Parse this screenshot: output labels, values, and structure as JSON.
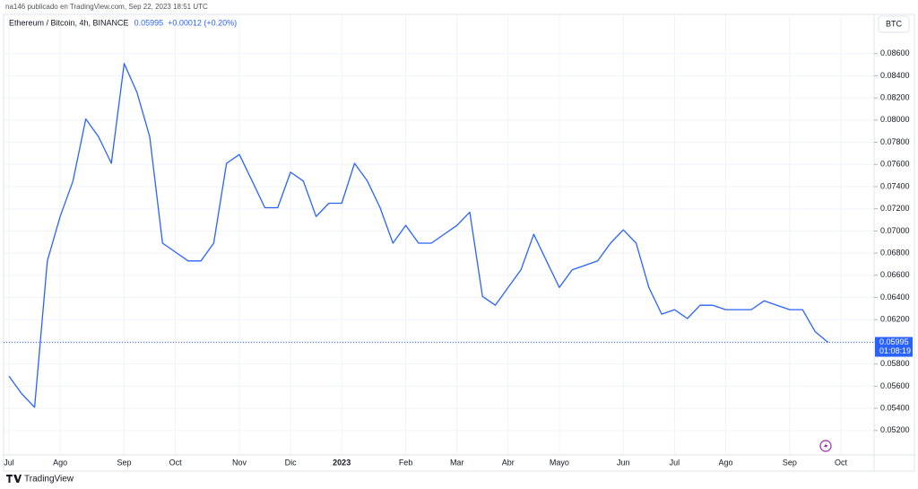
{
  "chart_data": {
    "type": "line",
    "publisher_note": "na146 publicado en TradingView.com, Sep 22, 2023 18:51 UTC",
    "title": "Ethereum / Bitcoin, 4h, BINANCE",
    "last_price": 0.05995,
    "change_text": "+0.00012 (+0.20%)",
    "currency_button": "BTC",
    "countdown": "01:08:19",
    "brand": "TradingView",
    "categories": [
      "Jul",
      null,
      null,
      null,
      "Ago",
      null,
      null,
      null,
      null,
      "Sep",
      null,
      null,
      null,
      "Oct",
      null,
      null,
      null,
      null,
      "Nov",
      null,
      null,
      null,
      "Dic",
      null,
      null,
      null,
      "2023",
      null,
      null,
      null,
      null,
      "Feb",
      null,
      null,
      null,
      "Mar",
      null,
      null,
      null,
      "Abr",
      null,
      null,
      null,
      "Mayo",
      null,
      null,
      null,
      null,
      "Jun",
      null,
      null,
      null,
      "Jul",
      null,
      null,
      null,
      "Ago",
      null,
      null,
      null,
      null,
      "Sep",
      null,
      null,
      null,
      "Oct"
    ],
    "series": [
      {
        "name": "Ethereum / Bitcoin",
        "color": "#2962ff",
        "values": [
          0.0569,
          0.0553,
          0.0541,
          0.0673,
          0.0713,
          0.0745,
          0.0801,
          0.0785,
          0.0761,
          0.0851,
          0.0825,
          0.0785,
          0.0689,
          0.0681,
          0.0673,
          0.0673,
          0.0689,
          0.0761,
          0.0769,
          0.0745,
          0.0721,
          0.0721,
          0.0753,
          0.0745,
          0.0713,
          0.0725,
          0.0725,
          0.0761,
          0.0745,
          0.0721,
          0.0689,
          0.0705,
          0.0689,
          0.0689,
          0.0697,
          0.0705,
          0.0717,
          0.0641,
          0.0633,
          0.0649,
          0.0665,
          0.0697,
          0.0673,
          0.0649,
          0.0665,
          0.0669,
          0.0673,
          0.0689,
          0.0701,
          0.0689,
          0.0649,
          0.0625,
          0.0629,
          0.0621,
          0.0633,
          0.0633,
          0.0629,
          0.0629,
          0.0629,
          0.0637,
          0.0633,
          0.0629,
          0.0629,
          0.0609,
          0.05995,
          null
        ]
      }
    ],
    "ylim": [
      0.0498,
      0.0897
    ],
    "yticks": [
      {
        "value": 0.052,
        "label": "0.05200"
      },
      {
        "value": 0.054,
        "label": "0.05400"
      },
      {
        "value": 0.056,
        "label": "0.05600"
      },
      {
        "value": 0.058,
        "label": "0.05800"
      },
      {
        "value": 0.06,
        "label": "0.06000"
      },
      {
        "value": 0.062,
        "label": "0.06200"
      },
      {
        "value": 0.064,
        "label": "0.06400"
      },
      {
        "value": 0.066,
        "label": "0.06600"
      },
      {
        "value": 0.068,
        "label": "0.06800"
      },
      {
        "value": 0.07,
        "label": "0.07000"
      },
      {
        "value": 0.072,
        "label": "0.07200"
      },
      {
        "value": 0.074,
        "label": "0.07400"
      },
      {
        "value": 0.076,
        "label": "0.07600"
      },
      {
        "value": 0.078,
        "label": "0.07800"
      },
      {
        "value": 0.08,
        "label": "0.08000"
      },
      {
        "value": 0.082,
        "label": "0.08200"
      },
      {
        "value": 0.084,
        "label": "0.08400"
      },
      {
        "value": 0.086,
        "label": "0.08600"
      }
    ],
    "grid": true
  }
}
